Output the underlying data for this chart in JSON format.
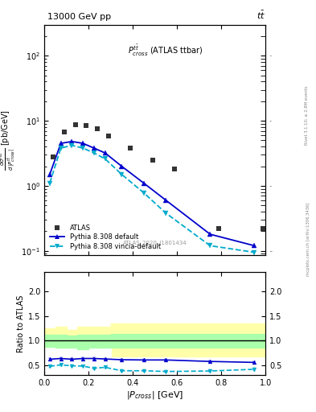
{
  "xlim": [
    0,
    1.0
  ],
  "ylim_main": [
    0.085,
    300
  ],
  "ylim_ratio": [
    0.3,
    2.4
  ],
  "atlas_x": [
    0.04,
    0.09,
    0.14,
    0.19,
    0.24,
    0.29,
    0.39,
    0.49,
    0.59,
    0.79,
    0.99
  ],
  "atlas_y": [
    2.8,
    6.8,
    8.8,
    8.5,
    7.5,
    5.8,
    3.8,
    2.5,
    1.8,
    0.22,
    0.22
  ],
  "pythia_default_x": [
    0.025,
    0.075,
    0.125,
    0.175,
    0.225,
    0.275,
    0.35,
    0.45,
    0.55,
    0.75,
    0.95
  ],
  "pythia_default_y": [
    1.5,
    4.5,
    4.8,
    4.5,
    3.8,
    3.2,
    2.0,
    1.1,
    0.6,
    0.18,
    0.12
  ],
  "pythia_vincia_x": [
    0.025,
    0.075,
    0.125,
    0.175,
    0.225,
    0.275,
    0.35,
    0.45,
    0.55,
    0.75,
    0.95
  ],
  "pythia_vincia_y": [
    1.1,
    3.8,
    4.2,
    3.8,
    3.2,
    2.6,
    1.5,
    0.78,
    0.38,
    0.12,
    0.095
  ],
  "ratio_default_x": [
    0.025,
    0.075,
    0.125,
    0.175,
    0.225,
    0.275,
    0.35,
    0.45,
    0.55,
    0.75,
    0.95
  ],
  "ratio_default_y": [
    0.62,
    0.635,
    0.62,
    0.635,
    0.635,
    0.625,
    0.61,
    0.605,
    0.605,
    0.575,
    0.555
  ],
  "ratio_default_err": [
    0.025,
    0.018,
    0.018,
    0.018,
    0.018,
    0.018,
    0.018,
    0.018,
    0.018,
    0.022,
    0.022
  ],
  "ratio_vincia_x": [
    0.025,
    0.075,
    0.125,
    0.175,
    0.225,
    0.275,
    0.35,
    0.45,
    0.55,
    0.75,
    0.95
  ],
  "ratio_vincia_y": [
    0.475,
    0.505,
    0.485,
    0.48,
    0.435,
    0.455,
    0.385,
    0.385,
    0.37,
    0.38,
    0.415
  ],
  "ratio_vincia_err": [
    0.025,
    0.022,
    0.022,
    0.022,
    0.022,
    0.022,
    0.022,
    0.022,
    0.022,
    0.028,
    0.028
  ],
  "band_edges": [
    0.0,
    0.05,
    0.1,
    0.15,
    0.2,
    0.25,
    0.3,
    0.4,
    0.5,
    0.6,
    0.8,
    1.0
  ],
  "band_yellow_lo": [
    0.72,
    0.68,
    0.68,
    0.62,
    0.68,
    0.68,
    0.68,
    0.68,
    0.68,
    0.68,
    0.68,
    0.68
  ],
  "band_yellow_hi": [
    1.25,
    1.28,
    1.22,
    1.28,
    1.28,
    1.28,
    1.35,
    1.35,
    1.35,
    1.35,
    1.35,
    1.35
  ],
  "band_green_lo": [
    0.88,
    0.86,
    0.86,
    0.82,
    0.86,
    0.86,
    0.86,
    0.86,
    0.86,
    0.86,
    0.86,
    0.86
  ],
  "band_green_hi": [
    1.12,
    1.12,
    1.1,
    1.12,
    1.12,
    1.12,
    1.14,
    1.14,
    1.14,
    1.14,
    1.14,
    1.14
  ],
  "color_atlas": "#333333",
  "color_default": "#0000cc",
  "color_vincia": "#00aacc",
  "color_yellow": "#ffffaa",
  "color_green": "#aaffaa",
  "color_white": "#ffffff"
}
